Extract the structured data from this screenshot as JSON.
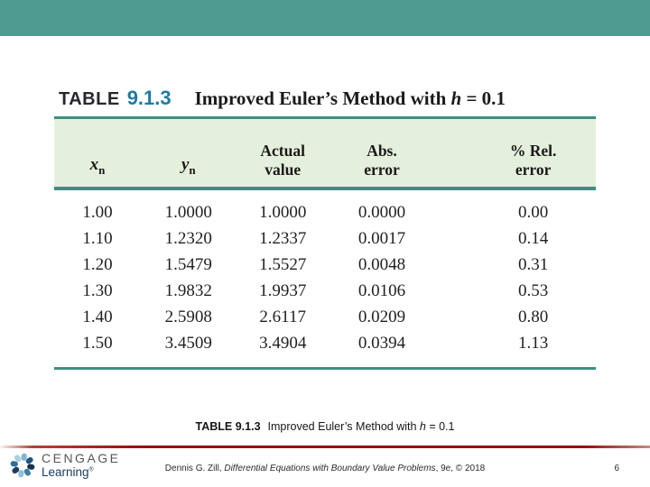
{
  "slide": {
    "colors": {
      "top_bar_teal": "#4E9C8F",
      "table_rule_teal": "#3D8F83",
      "table_header_green": "#E4F0DC",
      "figure_number_blue": "#1E7BA2",
      "divider_red": "#8E1309",
      "brand_navy": "#16395F",
      "brand_gray": "#55565A"
    },
    "figure": {
      "label": "TABLE",
      "number": "9.1.3",
      "title_pre": "Improved Euler’s Method with ",
      "title_var": "h",
      "title_post": " = 0.1"
    },
    "caption": {
      "label": "TABLE 9.1.3",
      "title_pre": "Improved Euler’s Method with ",
      "title_var": "h",
      "title_post": " = 0.1"
    },
    "footer": {
      "author": "Dennis G. Zill, ",
      "book_title": "Differential Equations with Boundary Value Problems",
      "edition_suffix": ", 9e, © 2018",
      "page_number": "6"
    },
    "brand": {
      "name": "CENGAGE",
      "division": "Learning",
      "registered_mark": "®"
    }
  },
  "table": {
    "headers": [
      {
        "var": "x",
        "sub": "n"
      },
      {
        "var": "y",
        "sub": "n"
      },
      {
        "lines": [
          "Actual",
          "value"
        ]
      },
      {
        "lines": [
          "Abs.",
          "error"
        ]
      },
      {
        "lines": [
          "% Rel.",
          "error"
        ]
      }
    ]
  },
  "chart_data": {
    "type": "table",
    "title": "Improved Euler’s Method with h = 0.1",
    "columns": [
      "x_n",
      "y_n",
      "Actual value",
      "Abs. error",
      "% Rel. error"
    ],
    "rows": [
      [
        "1.00",
        "1.0000",
        "1.0000",
        "0.0000",
        "0.00"
      ],
      [
        "1.10",
        "1.2320",
        "1.2337",
        "0.0017",
        "0.14"
      ],
      [
        "1.20",
        "1.5479",
        "1.5527",
        "0.0048",
        "0.31"
      ],
      [
        "1.30",
        "1.9832",
        "1.9937",
        "0.0106",
        "0.53"
      ],
      [
        "1.40",
        "2.5908",
        "2.6117",
        "0.0209",
        "0.80"
      ],
      [
        "1.50",
        "3.4509",
        "3.4904",
        "0.0394",
        "1.13"
      ]
    ]
  }
}
